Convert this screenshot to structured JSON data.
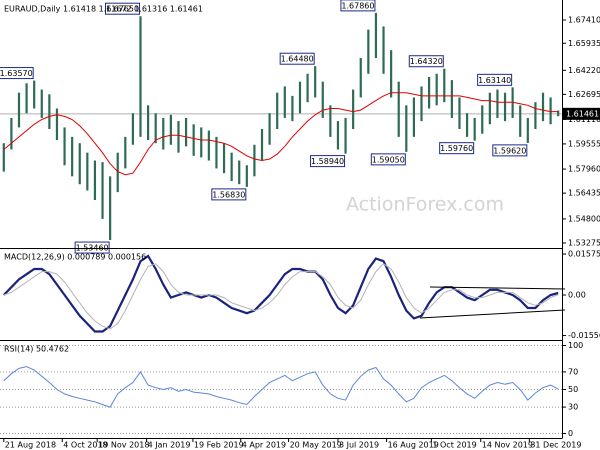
{
  "chart_data": [
    {
      "type": "range-bars",
      "title": "EURAUD,Daily 1.61418 1.61672 1.61316 1.61461",
      "watermark": "ActionForex.com",
      "xlim": [
        -0.5,
        73.5
      ],
      "ylim": [
        1.5302,
        1.6855
      ],
      "yticks": [
        {
          "value": 1.6741,
          "label": "1.67410"
        },
        1.65935,
        {
          "value": 1.6422,
          "label": "1.64220"
        },
        1.62695,
        {
          "value": 1.6111,
          "label": "1.61110"
        },
        1.59555,
        {
          "value": 1.5796,
          "label": "1.57960"
        },
        1.56435,
        {
          "value": 1.548,
          "label": "1.54800"
        },
        1.53275
      ],
      "color": "#2e6b55",
      "high": [
        1.596,
        1.612,
        1.628,
        1.634,
        1.6357,
        1.63,
        1.627,
        1.618,
        1.606,
        1.6,
        1.596,
        1.59,
        1.585,
        1.584,
        1.575,
        1.59,
        1.6,
        1.615,
        1.6765,
        1.62,
        1.615,
        1.612,
        1.614,
        1.61,
        1.612,
        1.608,
        1.606,
        1.604,
        1.6,
        1.596,
        1.59,
        1.585,
        1.582,
        1.595,
        1.605,
        1.615,
        1.628,
        1.632,
        1.626,
        1.635,
        1.64,
        1.6448,
        1.635,
        1.62,
        1.61,
        1.612,
        1.63,
        1.65,
        1.668,
        1.6786,
        1.67,
        1.655,
        1.635,
        1.62,
        1.625,
        1.632,
        1.638,
        1.64,
        1.6432,
        1.636,
        1.625,
        1.615,
        1.612,
        1.62,
        1.628,
        1.63,
        1.628,
        1.6314,
        1.62,
        1.612,
        1.622,
        1.628,
        1.625,
        1.61672
      ],
      "low": [
        1.578,
        1.592,
        1.606,
        1.615,
        1.618,
        1.612,
        1.605,
        1.598,
        1.582,
        1.575,
        1.57,
        1.566,
        1.56,
        1.548,
        1.5346,
        1.565,
        1.58,
        1.595,
        1.6,
        1.598,
        1.596,
        1.592,
        1.595,
        1.59,
        1.594,
        1.588,
        1.587,
        1.585,
        1.58,
        1.577,
        1.572,
        1.57,
        1.5683,
        1.575,
        1.585,
        1.595,
        1.605,
        1.612,
        1.61,
        1.615,
        1.622,
        1.625,
        1.612,
        1.6,
        1.592,
        1.5894,
        1.605,
        1.625,
        1.64,
        1.65,
        1.64,
        1.625,
        1.6,
        1.5905,
        1.6,
        1.61,
        1.618,
        1.62,
        1.622,
        1.612,
        1.605,
        1.6,
        1.5976,
        1.602,
        1.608,
        1.612,
        1.61,
        1.612,
        1.6,
        1.5962,
        1.605,
        1.61,
        1.608,
        1.61316
      ],
      "overlay": {
        "color": "#e00000",
        "values": [
          1.592,
          1.596,
          1.6,
          1.604,
          1.608,
          1.611,
          1.613,
          1.614,
          1.613,
          1.611,
          1.607,
          1.602,
          1.596,
          1.59,
          1.583,
          1.578,
          1.576,
          1.577,
          1.584,
          1.592,
          1.598,
          1.6,
          1.601,
          1.601,
          1.6,
          1.599,
          1.598,
          1.598,
          1.597,
          1.596,
          1.594,
          1.591,
          1.588,
          1.586,
          1.585,
          1.586,
          1.589,
          1.594,
          1.6,
          1.605,
          1.61,
          1.614,
          1.617,
          1.618,
          1.618,
          1.617,
          1.616,
          1.617,
          1.62,
          1.623,
          1.626,
          1.628,
          1.628,
          1.628,
          1.627,
          1.626,
          1.626,
          1.626,
          1.626,
          1.626,
          1.626,
          1.625,
          1.624,
          1.623,
          1.623,
          1.622,
          1.622,
          1.622,
          1.621,
          1.62,
          1.618,
          1.617,
          1.616,
          1.616
        ]
      },
      "annotations": [
        {
          "label": "1.63570",
          "x": 4,
          "value": 1.6357
        },
        {
          "label": "1.67650",
          "x": 18,
          "value": 1.6765
        },
        {
          "label": "1.53460",
          "x": 14,
          "value": 1.5346
        },
        {
          "label": "1.56830",
          "x": 32,
          "value": 1.5683
        },
        {
          "label": "1.64480",
          "x": 41,
          "value": 1.6448
        },
        {
          "label": "1.58940",
          "x": 45,
          "value": 1.5894
        },
        {
          "label": "1.67860",
          "x": 49,
          "value": 1.6786
        },
        {
          "label": "1.59050",
          "x": 53,
          "value": 1.5905
        },
        {
          "label": "1.64320",
          "x": 58,
          "value": 1.6432
        },
        {
          "label": "1.59760",
          "x": 62,
          "value": 1.5976
        },
        {
          "label": "1.63140",
          "x": 67,
          "value": 1.6314
        },
        {
          "label": "1.59620",
          "x": 69,
          "value": 1.5962
        }
      ],
      "last": {
        "value": 1.61461,
        "label": "1.61461"
      }
    },
    {
      "type": "line",
      "title": "MACD(12,26,9) 0.000789 0.000156",
      "xlim": [
        -0.5,
        73.5
      ],
      "ylim": [
        -0.0169,
        0.0173
      ],
      "yticks": [
        0.01575,
        {
          "value": 0,
          "label": "0.00"
        },
        -0.015568
      ],
      "series": [
        {
          "color": "#1a237e",
          "values": [
            0.0,
            0.003,
            0.006,
            0.008,
            0.01,
            0.01,
            0.008,
            0.004,
            0.0,
            -0.004,
            -0.008,
            -0.011,
            -0.014,
            -0.014,
            -0.012,
            -0.006,
            0.0,
            0.006,
            0.013,
            0.015,
            0.01,
            0.004,
            -0.001,
            0.0,
            0.001,
            0.0,
            -0.001,
            0.0,
            -0.001,
            -0.003,
            -0.005,
            -0.006,
            -0.007,
            -0.006,
            -0.003,
            0.0,
            0.004,
            0.008,
            0.01,
            0.01,
            0.009,
            0.009,
            0.006,
            0.0,
            -0.005,
            -0.007,
            -0.004,
            0.003,
            0.01,
            0.014,
            0.013,
            0.007,
            0.0,
            -0.006,
            -0.009,
            -0.008,
            -0.003,
            0.001,
            0.003,
            0.003,
            0.001,
            -0.001,
            -0.002,
            0.0,
            0.002,
            0.002,
            0.001,
            0.0,
            -0.002,
            -0.005,
            -0.005,
            -0.002,
            0.0,
            0.000789
          ]
        },
        {
          "color": "#b4b4b4",
          "values": [
            0.0,
            0.001,
            0.003,
            0.005,
            0.007,
            0.009,
            0.009,
            0.008,
            0.005,
            0.001,
            -0.003,
            -0.007,
            -0.01,
            -0.012,
            -0.013,
            -0.011,
            -0.006,
            0.0,
            0.006,
            0.011,
            0.012,
            0.009,
            0.004,
            0.001,
            0.0,
            0.0,
            0.0,
            0.0,
            0.0,
            -0.001,
            -0.003,
            -0.004,
            -0.005,
            -0.006,
            -0.005,
            -0.003,
            0.0,
            0.004,
            0.007,
            0.009,
            0.009,
            0.009,
            0.007,
            0.004,
            -0.001,
            -0.004,
            -0.005,
            -0.002,
            0.004,
            0.009,
            0.012,
            0.01,
            0.005,
            -0.001,
            -0.005,
            -0.007,
            -0.005,
            -0.002,
            0.001,
            0.002,
            0.002,
            0.0,
            -0.001,
            -0.001,
            0.0,
            0.001,
            0.001,
            0.001,
            -0.001,
            -0.003,
            -0.004,
            -0.003,
            -0.001,
            0.000156
          ]
        }
      ]
    },
    {
      "type": "line",
      "title": "RSI(14) 50.4762",
      "xlim": [
        -0.5,
        73.5
      ],
      "ylim": [
        -4,
        104
      ],
      "yticks": [
        100,
        70,
        50,
        30,
        0
      ],
      "grid": true,
      "xticks": [
        {
          "value": 0,
          "label": "21 Aug 2018"
        },
        {
          "value": 7.7,
          "label": "4 Oct 2018"
        },
        {
          "value": 12.3,
          "label": "19 Nov 2018"
        },
        {
          "value": 18.8,
          "label": "4 Jan 2019"
        },
        {
          "value": 24.9,
          "label": "19 Feb 2019"
        },
        {
          "value": 31.2,
          "label": "4 Apr 2019"
        },
        {
          "value": 37.5,
          "label": "20 May 2019"
        },
        {
          "value": 44,
          "label": "3 Jul 2019"
        },
        {
          "value": 50.4,
          "label": "16 Aug 2019"
        },
        {
          "value": 56.3,
          "label": "1 Oct 2019"
        },
        {
          "value": 62.8,
          "label": "14 Nov 2019"
        },
        {
          "value": 69.2,
          "label": "31 Dec 2019"
        }
      ],
      "series": [
        {
          "color": "#5b86d6",
          "values": [
            60,
            68,
            74,
            76,
            72,
            65,
            58,
            50,
            45,
            42,
            40,
            38,
            36,
            33,
            30,
            45,
            52,
            58,
            70,
            55,
            52,
            50,
            52,
            48,
            50,
            47,
            46,
            45,
            42,
            40,
            38,
            35,
            33,
            42,
            50,
            58,
            62,
            66,
            60,
            64,
            68,
            70,
            55,
            45,
            40,
            38,
            55,
            65,
            72,
            75,
            62,
            55,
            45,
            36,
            40,
            52,
            58,
            62,
            66,
            60,
            52,
            45,
            40,
            48,
            55,
            58,
            56,
            58,
            50,
            38,
            46,
            52,
            55,
            50.4762
          ]
        }
      ]
    }
  ]
}
